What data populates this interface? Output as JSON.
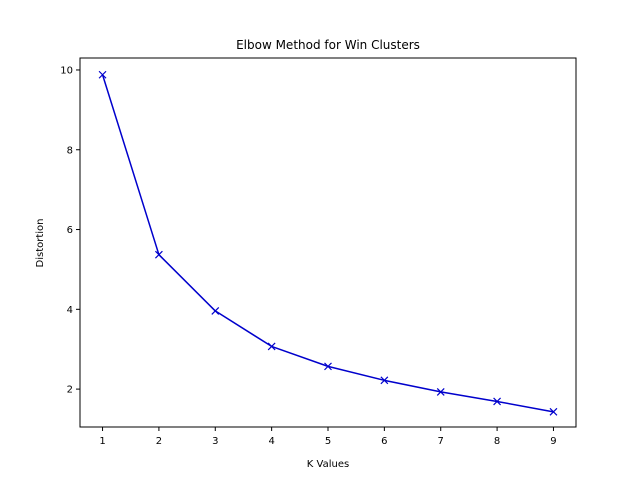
{
  "chart_data": {
    "type": "line",
    "title": "Elbow Method for Win Clusters",
    "xlabel": "K Values",
    "ylabel": "Distortion",
    "xlim": [
      0.6,
      9.4
    ],
    "ylim": [
      1.05,
      10.3
    ],
    "xticks": [
      1,
      2,
      3,
      4,
      5,
      6,
      7,
      8,
      9
    ],
    "yticks": [
      2,
      4,
      6,
      8,
      10
    ],
    "grid": false,
    "series": [
      {
        "x": [
          1,
          2,
          3,
          4,
          5,
          6,
          7,
          8,
          9
        ],
        "y": [
          9.88,
          5.37,
          3.96,
          3.07,
          2.57,
          2.22,
          1.93,
          1.69,
          1.43
        ],
        "color": "#0000cc",
        "marker": "x"
      }
    ]
  }
}
